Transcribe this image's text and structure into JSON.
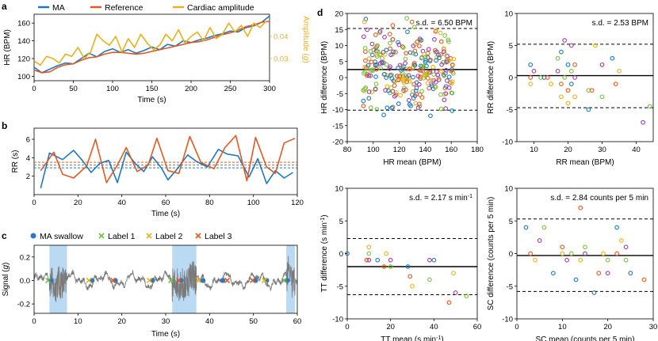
{
  "panel_labels": {
    "a": "a",
    "b": "b",
    "c": "c",
    "d": "d"
  },
  "colors": {
    "ma": "#1f77c0",
    "reference": "#e05a23",
    "cardiac": "#e8b11c",
    "axis": "#000000",
    "signal": "#7a7a7a",
    "shade": "#9cc9ec",
    "label1": "#6cbd45",
    "label2": "#e8b11c",
    "label3": "#e05a23",
    "swallow": "#2f77c4",
    "bland_purple": "#9b3db0",
    "bland_green": "#7bbf3f",
    "bland_blue": "#1f77c0",
    "bland_orange": "#e05a23",
    "bland_yellow": "#e8b11c"
  },
  "chart_data": [
    {
      "id": "a",
      "type": "line",
      "xlabel": "Time (s)",
      "ylabel": "HR (BPM)",
      "y2label_main": "Amplitude (",
      "y2label_unit": "g",
      "y2label_close": ")",
      "xlim": [
        0,
        300
      ],
      "ylim": [
        95,
        170
      ],
      "y2lim": [
        0.02,
        0.05
      ],
      "xticks": [
        "0",
        "50",
        "100",
        "150",
        "200",
        "250",
        "300"
      ],
      "yticks": [
        "100",
        "120",
        "140",
        "160"
      ],
      "y2ticks": [
        "0.03",
        "0.04"
      ],
      "legend": [
        "MA",
        "Reference",
        "Cardiac amplitude"
      ],
      "series": [
        {
          "name": "MA",
          "x": [
            0,
            10,
            20,
            30,
            40,
            50,
            60,
            70,
            80,
            90,
            100,
            110,
            120,
            130,
            140,
            150,
            160,
            170,
            180,
            190,
            200,
            210,
            220,
            230,
            240,
            250,
            260,
            270,
            280,
            290,
            300
          ],
          "values": [
            110,
            104,
            108,
            112,
            115,
            114,
            120,
            126,
            122,
            128,
            131,
            127,
            130,
            126,
            129,
            133,
            130,
            136,
            134,
            140,
            138,
            141,
            143,
            146,
            148,
            151,
            150,
            155,
            157,
            161,
            168
          ]
        },
        {
          "name": "Reference",
          "x": [
            0,
            10,
            20,
            30,
            40,
            50,
            60,
            70,
            80,
            90,
            100,
            110,
            120,
            130,
            140,
            150,
            160,
            170,
            180,
            190,
            200,
            210,
            220,
            230,
            240,
            250,
            260,
            270,
            280,
            290,
            300
          ],
          "values": [
            107,
            104,
            105,
            110,
            113,
            114,
            118,
            121,
            122,
            125,
            127,
            127,
            126,
            125,
            126,
            128,
            130,
            132,
            134,
            136,
            138,
            139,
            141,
            144,
            147,
            149,
            152,
            156,
            158,
            161,
            162
          ]
        },
        {
          "name": "Cardiac amplitude",
          "axis": "right",
          "x": [
            0,
            8,
            16,
            24,
            32,
            40,
            48,
            56,
            64,
            72,
            80,
            88,
            96,
            104,
            112,
            120,
            128,
            136,
            144,
            152,
            160,
            168,
            176,
            184,
            192,
            200,
            208,
            216,
            224,
            232,
            240,
            248,
            256,
            264,
            272,
            280,
            288,
            296
          ],
          "values": [
            0.029,
            0.027,
            0.031,
            0.03,
            0.028,
            0.032,
            0.031,
            0.035,
            0.03,
            0.033,
            0.041,
            0.038,
            0.036,
            0.04,
            0.033,
            0.039,
            0.035,
            0.041,
            0.037,
            0.034,
            0.036,
            0.041,
            0.038,
            0.043,
            0.037,
            0.04,
            0.042,
            0.038,
            0.044,
            0.039,
            0.041,
            0.046,
            0.042,
            0.045,
            0.04,
            0.046,
            0.044,
            0.047
          ]
        }
      ]
    },
    {
      "id": "b",
      "type": "line",
      "xlabel": "Time (s)",
      "ylabel": "RR (s)",
      "xlim": [
        0,
        120
      ],
      "ylim": [
        0,
        7.2
      ],
      "xticks": [
        "0",
        "20",
        "40",
        "60",
        "80",
        "100",
        "120"
      ],
      "yticks": [
        "2",
        "4",
        "6"
      ],
      "hlines": [
        2.9,
        3.2,
        3.5
      ],
      "series": [
        {
          "name": "MA",
          "x": [
            3,
            7,
            13,
            18,
            22,
            26,
            30,
            34,
            38,
            42,
            46,
            50,
            54,
            58,
            61,
            65,
            70,
            74,
            79,
            84,
            88,
            93,
            98,
            102,
            106,
            110,
            114,
            118
          ],
          "values": [
            0.7,
            4.5,
            3.8,
            4.8,
            3.7,
            2.4,
            3.4,
            3.7,
            1.3,
            4.6,
            3.4,
            2.5,
            4.1,
            2.9,
            1.6,
            2.7,
            4.3,
            3.6,
            3.0,
            4.9,
            4.4,
            4.2,
            1.9,
            3.9,
            1.2,
            2.6,
            1.8,
            2.4
          ]
        },
        {
          "name": "Reference",
          "x": [
            3,
            9,
            13,
            18,
            24,
            28,
            33,
            38,
            42,
            47,
            52,
            56,
            61,
            66,
            71,
            76,
            82,
            87,
            92,
            97,
            101,
            106,
            110,
            114,
            119
          ],
          "values": [
            2.6,
            4.6,
            2.2,
            1.8,
            3.1,
            6.0,
            1.3,
            3.2,
            5.1,
            2.5,
            3.2,
            6.1,
            2.6,
            2.3,
            6.3,
            3.5,
            2.8,
            5.1,
            6.4,
            1.5,
            6.2,
            3.0,
            2.3,
            5.6,
            6.1
          ]
        }
      ]
    },
    {
      "id": "c",
      "type": "line",
      "xlabel": "Time (s)",
      "ylabel_main": "Signal (",
      "ylabel_unit": "g",
      "ylabel_close": ")",
      "xlim": [
        0,
        60
      ],
      "ylim": [
        -0.28,
        0.3
      ],
      "xticks": [
        "0",
        "10",
        "20",
        "30",
        "40",
        "50",
        "60"
      ],
      "yticks": [
        "-0.2",
        "0.0",
        "0.2"
      ],
      "legend": [
        "MA swallow",
        "Label 1",
        "Label 2",
        "Label 3"
      ],
      "shaded_regions": [
        [
          3.5,
          7.5
        ],
        [
          31.5,
          37
        ],
        [
          57.5,
          59.5
        ]
      ],
      "swallow_times": [
        3.8,
        13.2,
        18.5,
        27.0,
        33.5,
        38.5,
        43.0,
        50.5,
        53.0,
        57.7
      ],
      "label1_times": [
        3.2,
        31.2,
        57.0
      ],
      "label2_times": [
        12.5,
        26.3,
        37.5,
        52.5
      ],
      "label3_times": [
        18.0,
        33.0,
        44.0,
        49.8
      ]
    },
    {
      "id": "d1",
      "type": "scatter",
      "xlabel": "HR mean (BPM)",
      "ylabel": "HR difference (BPM)",
      "annotation": "s.d. = 6.50 BPM",
      "xlim": [
        80,
        180
      ],
      "ylim": [
        -20,
        20
      ],
      "xticks": [
        "80",
        "100",
        "120",
        "140",
        "160",
        "180"
      ],
      "yticks": [
        "-20",
        "-15",
        "-10",
        "-5",
        "0",
        "5",
        "10",
        "15",
        "20"
      ],
      "mean_line": 2.5,
      "limits": [
        15.3,
        -10.2
      ],
      "points": "random-cloud: approx. 300 points, HR mean 90-165 BPM, difference -17 to 22 BPM"
    },
    {
      "id": "d2",
      "type": "scatter",
      "xlabel": "RR mean (BPM)",
      "ylabel": "RR difference (BPM)",
      "annotation": "s.d. = 2.53 BPM",
      "xlim": [
        5,
        45
      ],
      "ylim": [
        -10,
        10
      ],
      "xticks": [
        "10",
        "20",
        "30",
        "40"
      ],
      "yticks": [
        "-10",
        "-5",
        "0",
        "5",
        "10"
      ],
      "mean_line": 0.3,
      "limits": [
        5.2,
        -4.7
      ],
      "points": [
        [
          9,
          2
        ],
        [
          9,
          0
        ],
        [
          9,
          -1
        ],
        [
          10,
          1
        ],
        [
          12,
          0
        ],
        [
          13,
          0
        ],
        [
          14,
          0
        ],
        [
          15,
          -1
        ],
        [
          17,
          1
        ],
        [
          17,
          3
        ],
        [
          18,
          4
        ],
        [
          18,
          -1
        ],
        [
          18,
          -3
        ],
        [
          19,
          5.8
        ],
        [
          19,
          0
        ],
        [
          20,
          2
        ],
        [
          20,
          -2
        ],
        [
          20,
          -4
        ],
        [
          21,
          5
        ],
        [
          21,
          1
        ],
        [
          21,
          -1
        ],
        [
          22,
          2
        ],
        [
          22,
          -3
        ],
        [
          22,
          0
        ],
        [
          26,
          -2
        ],
        [
          26,
          -5
        ],
        [
          27,
          -2
        ],
        [
          28,
          5
        ],
        [
          30,
          2
        ],
        [
          30,
          -3
        ],
        [
          33,
          3
        ],
        [
          34,
          -1
        ],
        [
          35,
          1
        ],
        [
          42,
          -7
        ],
        [
          44,
          -4.5
        ]
      ]
    },
    {
      "id": "d3",
      "type": "scatter",
      "xlabel": "TT mean (s min",
      "xlabel_sup": "-1",
      "xlabel_close": ")",
      "ylabel": "TT difference (s min",
      "ylabel_sup": "-1",
      "ylabel_close": ")",
      "annotation": "s.d. = 2.17 s min",
      "annotation_sup": "-1",
      "xlim": [
        0,
        60
      ],
      "ylim": [
        -10,
        10
      ],
      "xticks": [
        "0",
        "20",
        "40",
        "60"
      ],
      "yticks": [
        "-10",
        "-5",
        "0",
        "5",
        "10"
      ],
      "mean_line": -2,
      "limits": [
        2.3,
        -6.3
      ],
      "points": [
        [
          0,
          0
        ],
        [
          9,
          -1
        ],
        [
          10,
          1
        ],
        [
          10,
          -1
        ],
        [
          10,
          0
        ],
        [
          14,
          -1
        ],
        [
          17,
          -2
        ],
        [
          18,
          0
        ],
        [
          20,
          -1
        ],
        [
          20,
          -2
        ],
        [
          28,
          -2
        ],
        [
          29,
          -3.5
        ],
        [
          30,
          -5
        ],
        [
          38,
          -1
        ],
        [
          38,
          -4
        ],
        [
          40,
          -1
        ],
        [
          47,
          -7.5
        ],
        [
          49,
          -3
        ],
        [
          50,
          -6
        ],
        [
          55,
          -6.5
        ]
      ]
    },
    {
      "id": "d4",
      "type": "scatter",
      "xlabel": "SC mean (counts per 5 min)",
      "ylabel": "SC difference (counts per 5 min)",
      "annotation": "s.d. = 2.84 counts per 5 min",
      "xlim": [
        0,
        30
      ],
      "ylim": [
        -10,
        10
      ],
      "xticks": [
        "0",
        "10",
        "20",
        "30"
      ],
      "yticks": [
        "-10",
        "-5",
        "0",
        "5",
        "10"
      ],
      "mean_line": -0.3,
      "limits": [
        5.3,
        -5.8
      ],
      "points": [
        [
          2,
          4
        ],
        [
          3,
          0
        ],
        [
          4,
          -1
        ],
        [
          5,
          2
        ],
        [
          6,
          4
        ],
        [
          8,
          -3
        ],
        [
          10,
          1
        ],
        [
          10,
          0
        ],
        [
          11,
          -1
        ],
        [
          12,
          0
        ],
        [
          13,
          -4
        ],
        [
          14,
          7
        ],
        [
          14,
          -1
        ],
        [
          15,
          0
        ],
        [
          15,
          1
        ],
        [
          17,
          -6
        ],
        [
          18,
          -3
        ],
        [
          19,
          0
        ],
        [
          20,
          -3
        ],
        [
          20,
          -1
        ],
        [
          22,
          4
        ],
        [
          22,
          0
        ],
        [
          23,
          2
        ],
        [
          24,
          1
        ],
        [
          24,
          -1
        ],
        [
          25,
          -3
        ],
        [
          28,
          -4
        ]
      ]
    }
  ]
}
